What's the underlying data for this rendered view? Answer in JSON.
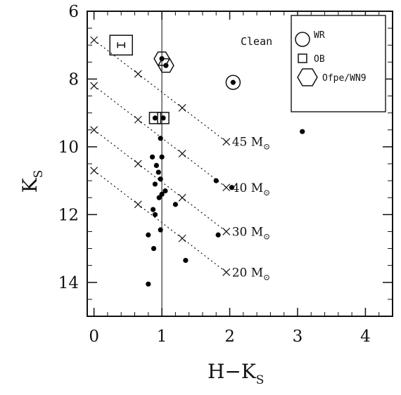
{
  "chart_data": {
    "type": "scatter",
    "xlabel": "H−K",
    "xlabel_sub": "S",
    "ylabel": "K",
    "ylabel_sub": "S",
    "xlim": [
      -0.1,
      4.4
    ],
    "ylim": [
      15,
      6
    ],
    "x_ticks": [
      0,
      1,
      2,
      3,
      4
    ],
    "y_ticks": [
      6,
      8,
      10,
      12,
      14
    ],
    "annotation": "Clean",
    "legend": [
      {
        "symbol": "circle",
        "label": "WR"
      },
      {
        "symbol": "square",
        "label": "OB"
      },
      {
        "symbol": "hexagon",
        "label": "Ofpe/WN9"
      }
    ],
    "vertical_line_x": 1.0,
    "points": [
      {
        "x": 1.0,
        "y": 7.4
      },
      {
        "x": 1.06,
        "y": 7.6
      },
      {
        "x": 2.05,
        "y": 8.1
      },
      {
        "x": 0.9,
        "y": 9.15
      },
      {
        "x": 1.02,
        "y": 9.15
      },
      {
        "x": 3.07,
        "y": 9.55
      },
      {
        "x": 0.98,
        "y": 9.75
      },
      {
        "x": 0.86,
        "y": 10.3
      },
      {
        "x": 1.0,
        "y": 10.3
      },
      {
        "x": 0.92,
        "y": 10.55
      },
      {
        "x": 0.95,
        "y": 10.75
      },
      {
        "x": 0.98,
        "y": 10.95
      },
      {
        "x": 1.8,
        "y": 11.0
      },
      {
        "x": 0.9,
        "y": 11.1
      },
      {
        "x": 2.03,
        "y": 11.2
      },
      {
        "x": 1.05,
        "y": 11.3
      },
      {
        "x": 1.0,
        "y": 11.4
      },
      {
        "x": 0.96,
        "y": 11.5
      },
      {
        "x": 1.2,
        "y": 11.7
      },
      {
        "x": 0.87,
        "y": 11.85
      },
      {
        "x": 0.9,
        "y": 12.0
      },
      {
        "x": 0.98,
        "y": 12.45
      },
      {
        "x": 1.83,
        "y": 12.6
      },
      {
        "x": 0.8,
        "y": 12.6
      },
      {
        "x": 0.88,
        "y": 13.0
      },
      {
        "x": 1.35,
        "y": 13.35
      },
      {
        "x": 0.8,
        "y": 14.05
      }
    ],
    "circled_points": [
      {
        "x": 2.05,
        "y": 8.1
      }
    ],
    "squared_points": [
      {
        "x": 0.9,
        "y": 9.15
      },
      {
        "x": 1.02,
        "y": 9.15
      }
    ],
    "hexagon_points": [
      {
        "x": 1.0,
        "y": 7.4
      },
      {
        "x": 1.06,
        "y": 7.6
      }
    ],
    "error_bar": {
      "x": 0.4,
      "y": 7.0
    },
    "reddening_tracks": [
      {
        "label": "45 M",
        "label_sub": "⊙",
        "x0": 0.0,
        "y0": 6.85,
        "x1": 1.95,
        "y1": 9.85
      },
      {
        "label": "40 M",
        "label_sub": "⊙",
        "x0": 0.0,
        "y0": 8.2,
        "x1": 1.95,
        "y1": 11.2
      },
      {
        "label": "30 M",
        "label_sub": "⊙",
        "x0": 0.0,
        "y0": 9.5,
        "x1": 1.95,
        "y1": 12.5
      },
      {
        "label": "20 M",
        "label_sub": "⊙",
        "x0": 0.0,
        "y0": 10.7,
        "x1": 1.95,
        "y1": 13.7
      }
    ],
    "track_marker_fractions": [
      0,
      0.333,
      0.667,
      1
    ]
  }
}
